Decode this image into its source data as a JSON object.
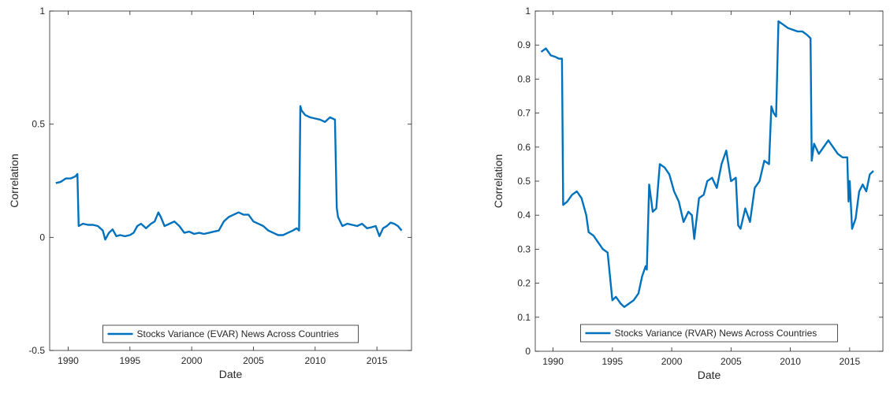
{
  "chart_data": [
    {
      "type": "line",
      "title": "",
      "xlabel": "Date",
      "ylabel": "Correlation",
      "xlim": [
        1988.5,
        2017.8
      ],
      "ylim": [
        -0.5,
        1
      ],
      "xticks": [
        1990,
        1995,
        2000,
        2005,
        2010,
        2015
      ],
      "xtick_labels": [
        "1990",
        "1995",
        "2000",
        "2005",
        "2010",
        "2015"
      ],
      "yticks": [
        -0.5,
        0,
        0.5,
        1
      ],
      "ytick_labels": [
        "-0.5",
        "0",
        "0.5",
        "1"
      ],
      "grid": false,
      "legend": {
        "position": "bottom-center"
      },
      "series": [
        {
          "name": "Stocks Variance (EVAR) News Across Countries",
          "color": "#0072BD",
          "x": [
            1989.0,
            1989.4,
            1989.8,
            1990.2,
            1990.6,
            1990.75,
            1990.85,
            1991.2,
            1991.6,
            1992.0,
            1992.4,
            1992.8,
            1993.0,
            1993.3,
            1993.6,
            1993.9,
            1994.2,
            1994.6,
            1995.0,
            1995.3,
            1995.6,
            1995.9,
            1996.3,
            1996.7,
            1997.0,
            1997.3,
            1997.5,
            1997.8,
            1998.2,
            1998.6,
            1999.0,
            1999.4,
            1999.8,
            2000.2,
            2000.6,
            2001.0,
            2001.4,
            2001.8,
            2002.2,
            2002.6,
            2003.0,
            2003.4,
            2003.8,
            2004.2,
            2004.6,
            2005.0,
            2005.4,
            2005.8,
            2006.2,
            2006.6,
            2007.0,
            2007.4,
            2007.8,
            2008.2,
            2008.5,
            2008.7,
            2008.8,
            2008.9,
            2009.2,
            2009.6,
            2010.0,
            2010.4,
            2010.8,
            2011.2,
            2011.6,
            2011.75,
            2011.85,
            2012.2,
            2012.6,
            2013.0,
            2013.4,
            2013.8,
            2014.2,
            2014.6,
            2014.9,
            2015.2,
            2015.5,
            2015.8,
            2016.1,
            2016.4,
            2016.7,
            2017.0
          ],
          "y": [
            0.24,
            0.245,
            0.26,
            0.26,
            0.27,
            0.28,
            0.05,
            0.06,
            0.055,
            0.055,
            0.05,
            0.03,
            -0.01,
            0.02,
            0.035,
            0.005,
            0.01,
            0.005,
            0.01,
            0.02,
            0.05,
            0.06,
            0.04,
            0.06,
            0.07,
            0.11,
            0.09,
            0.05,
            0.06,
            0.07,
            0.05,
            0.02,
            0.025,
            0.015,
            0.02,
            0.015,
            0.02,
            0.025,
            0.03,
            0.07,
            0.09,
            0.1,
            0.11,
            0.1,
            0.1,
            0.07,
            0.06,
            0.05,
            0.03,
            0.02,
            0.01,
            0.01,
            0.02,
            0.03,
            0.04,
            0.03,
            0.58,
            0.56,
            0.54,
            0.53,
            0.525,
            0.52,
            0.51,
            0.53,
            0.52,
            0.13,
            0.09,
            0.05,
            0.06,
            0.055,
            0.05,
            0.06,
            0.04,
            0.045,
            0.05,
            0.005,
            0.04,
            0.05,
            0.065,
            0.06,
            0.05,
            0.03
          ]
        }
      ]
    },
    {
      "type": "line",
      "title": "",
      "xlabel": "Date",
      "ylabel": "Correlation",
      "xlim": [
        1988.5,
        2017.8
      ],
      "ylim": [
        0,
        1
      ],
      "xticks": [
        1990,
        1995,
        2000,
        2005,
        2010,
        2015
      ],
      "xtick_labels": [
        "1990",
        "1995",
        "2000",
        "2005",
        "2010",
        "2015"
      ],
      "yticks": [
        0,
        0.1,
        0.2,
        0.3,
        0.4,
        0.5,
        0.6,
        0.7,
        0.8,
        0.9,
        1
      ],
      "ytick_labels": [
        "0",
        "0.1",
        "0.2",
        "0.3",
        "0.4",
        "0.5",
        "0.6",
        "0.7",
        "0.8",
        "0.9",
        "1"
      ],
      "grid": false,
      "legend": {
        "position": "bottom-center"
      },
      "series": [
        {
          "name": "Stocks Variance (RVAR) News Across Countries",
          "color": "#0072BD",
          "x": [
            1989.0,
            1989.4,
            1989.8,
            1990.2,
            1990.5,
            1990.75,
            1990.85,
            1991.2,
            1991.6,
            1992.0,
            1992.4,
            1992.8,
            1993.0,
            1993.4,
            1993.8,
            1994.2,
            1994.6,
            1995.0,
            1995.3,
            1995.7,
            1996.0,
            1996.4,
            1996.8,
            1997.2,
            1997.5,
            1997.8,
            1997.9,
            1998.1,
            1998.4,
            1998.7,
            1999.0,
            1999.4,
            1999.8,
            2000.2,
            2000.6,
            2001.0,
            2001.4,
            2001.7,
            2001.9,
            2002.3,
            2002.7,
            2003.0,
            2003.4,
            2003.8,
            2004.2,
            2004.6,
            2005.0,
            2005.4,
            2005.6,
            2005.8,
            2006.2,
            2006.6,
            2007.0,
            2007.4,
            2007.8,
            2008.2,
            2008.4,
            2008.6,
            2008.8,
            2009.0,
            2009.4,
            2009.8,
            2010.2,
            2010.6,
            2011.0,
            2011.4,
            2011.7,
            2011.8,
            2012.0,
            2012.4,
            2012.8,
            2013.2,
            2013.6,
            2014.0,
            2014.4,
            2014.8,
            2014.9,
            2015.0,
            2015.2,
            2015.5,
            2015.8,
            2016.1,
            2016.4,
            2016.7,
            2017.0
          ],
          "y": [
            0.88,
            0.89,
            0.87,
            0.865,
            0.86,
            0.86,
            0.43,
            0.44,
            0.46,
            0.47,
            0.45,
            0.4,
            0.35,
            0.34,
            0.32,
            0.3,
            0.29,
            0.15,
            0.16,
            0.14,
            0.13,
            0.14,
            0.15,
            0.17,
            0.22,
            0.25,
            0.24,
            0.49,
            0.41,
            0.42,
            0.55,
            0.54,
            0.52,
            0.47,
            0.44,
            0.38,
            0.41,
            0.4,
            0.33,
            0.45,
            0.46,
            0.5,
            0.51,
            0.48,
            0.55,
            0.59,
            0.5,
            0.51,
            0.37,
            0.36,
            0.42,
            0.38,
            0.48,
            0.5,
            0.56,
            0.55,
            0.72,
            0.7,
            0.69,
            0.97,
            0.96,
            0.95,
            0.945,
            0.94,
            0.94,
            0.93,
            0.92,
            0.56,
            0.61,
            0.58,
            0.6,
            0.62,
            0.6,
            0.58,
            0.57,
            0.57,
            0.44,
            0.5,
            0.36,
            0.39,
            0.47,
            0.49,
            0.47,
            0.52,
            0.53
          ]
        }
      ]
    }
  ]
}
